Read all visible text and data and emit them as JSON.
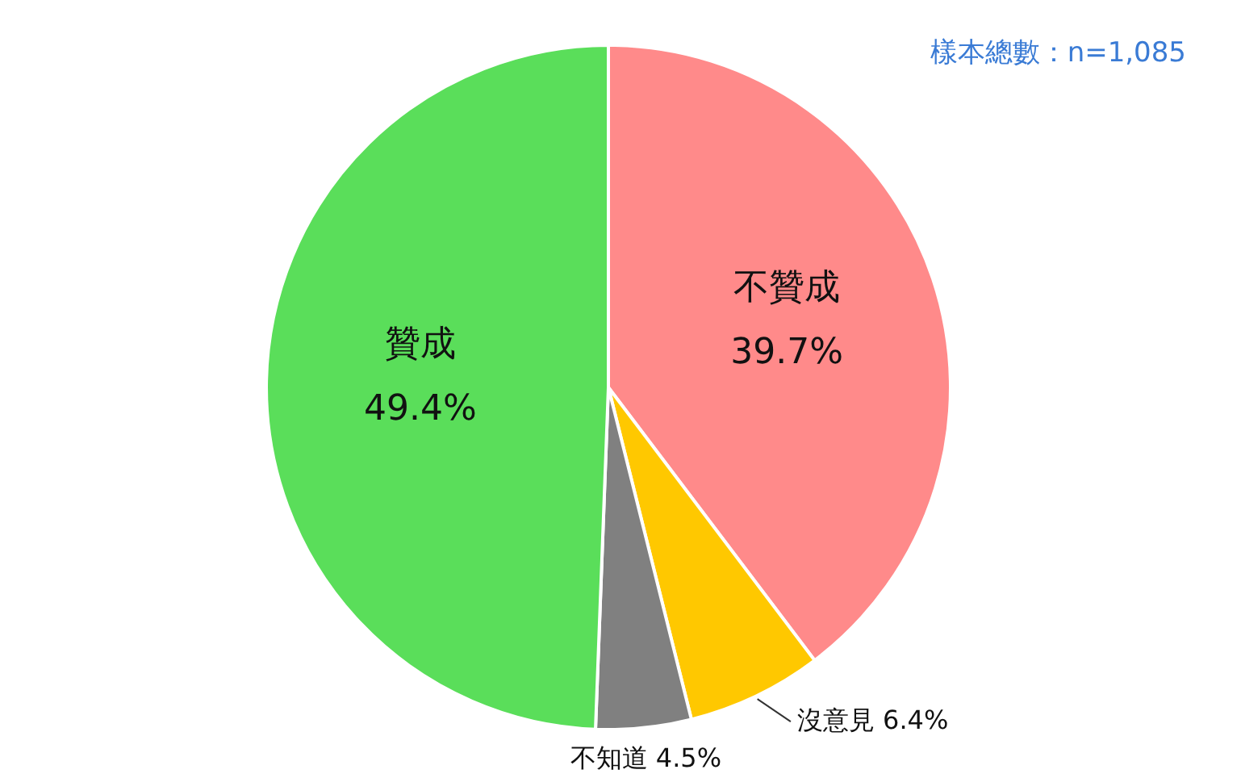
{
  "chart_data": {
    "type": "pie",
    "categories": [
      "不贊成",
      "沒意見",
      "不知道",
      "贊成"
    ],
    "values": [
      39.7,
      6.4,
      4.5,
      49.4
    ],
    "value_labels": [
      "39.7%",
      "6.4%",
      "4.5%",
      "49.4%"
    ],
    "colors": [
      "#ff8a8a",
      "#ffc800",
      "#808080",
      "#5ade5a"
    ],
    "annotations": [
      "樣本總數：n=1,085"
    ],
    "legend": false
  }
}
